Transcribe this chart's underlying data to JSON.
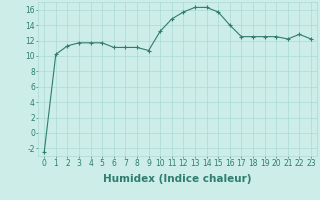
{
  "x": [
    0,
    1,
    2,
    3,
    4,
    5,
    6,
    7,
    8,
    9,
    10,
    11,
    12,
    13,
    14,
    15,
    16,
    17,
    18,
    19,
    20,
    21,
    22,
    23
  ],
  "y": [
    -2.5,
    10.2,
    11.3,
    11.7,
    11.7,
    11.7,
    11.1,
    11.1,
    11.1,
    10.7,
    13.2,
    14.8,
    15.7,
    16.3,
    16.3,
    15.7,
    14.0,
    12.5,
    12.5,
    12.5,
    12.5,
    12.2,
    12.8,
    12.2
  ],
  "line_color": "#2e7d6e",
  "marker": "+",
  "marker_size": 3,
  "bg_color": "#ccede8",
  "grid_color": "#aad9d4",
  "xlabel": "Humidex (Indice chaleur)",
  "xlim": [
    -0.5,
    23.5
  ],
  "ylim": [
    -3,
    17
  ],
  "yticks": [
    -2,
    0,
    2,
    4,
    6,
    8,
    10,
    12,
    14,
    16
  ],
  "xticks": [
    0,
    1,
    2,
    3,
    4,
    5,
    6,
    7,
    8,
    9,
    10,
    11,
    12,
    13,
    14,
    15,
    16,
    17,
    18,
    19,
    20,
    21,
    22,
    23
  ],
  "tick_label_fontsize": 5.5,
  "xlabel_fontsize": 7.5,
  "xlabel_fontweight": "bold"
}
